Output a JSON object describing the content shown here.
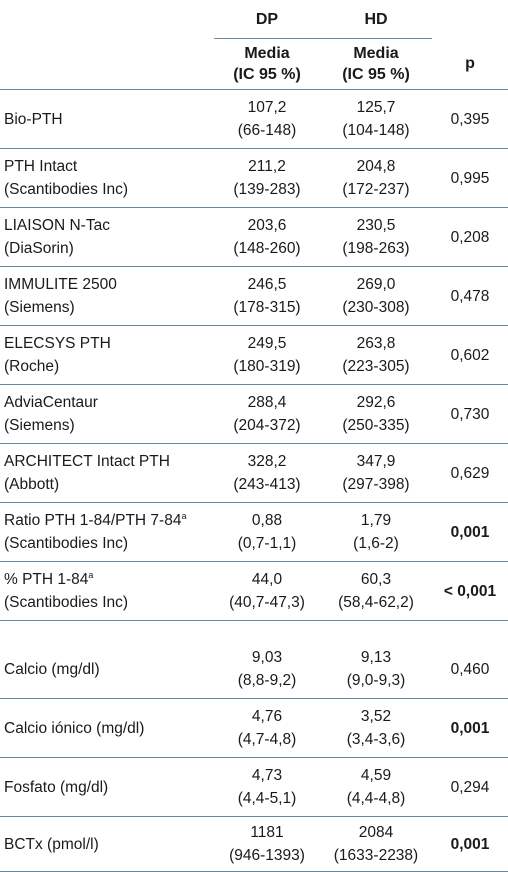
{
  "header": {
    "groups": [
      "DP",
      "HD"
    ],
    "stat_label": "Media",
    "ci_label": "(IC 95 %)",
    "p_label": "p"
  },
  "pth_rows": [
    {
      "name": "Bio-PTH",
      "sub": "",
      "sup": "",
      "dp_mean": "107,2",
      "dp_ci": "(66-148)",
      "hd_mean": "125,7",
      "hd_ci": "(104-148)",
      "p": "0,395",
      "sig": false
    },
    {
      "name": "PTH Intact",
      "sub": "(Scantibodies Inc)",
      "sup": "",
      "dp_mean": "211,2",
      "dp_ci": "(139-283)",
      "hd_mean": "204,8",
      "hd_ci": "(172-237)",
      "p": "0,995",
      "sig": false
    },
    {
      "name": "LIAISON N-Tac",
      "sub": "(DiaSorin)",
      "sup": "",
      "dp_mean": "203,6",
      "dp_ci": "(148-260)",
      "hd_mean": "230,5",
      "hd_ci": "(198-263)",
      "p": "0,208",
      "sig": false
    },
    {
      "name": "IMMULITE 2500",
      "sub": "(Siemens)",
      "sup": "",
      "dp_mean": "246,5",
      "dp_ci": "(178-315)",
      "hd_mean": "269,0",
      "hd_ci": "(230-308)",
      "p": "0,478",
      "sig": false
    },
    {
      "name": "ELECSYS PTH",
      "sub": "(Roche)",
      "sup": "",
      "dp_mean": "249,5",
      "dp_ci": "(180-319)",
      "hd_mean": "263,8",
      "hd_ci": "(223-305)",
      "p": "0,602",
      "sig": false
    },
    {
      "name": "AdviaCentaur",
      "sub": "(Siemens)",
      "sup": "",
      "dp_mean": "288,4",
      "dp_ci": "(204-372)",
      "hd_mean": "292,6",
      "hd_ci": "(250-335)",
      "p": "0,730",
      "sig": false
    },
    {
      "name": "ARCHITECT Intact PTH",
      "sub": "(Abbott)",
      "sup": "",
      "dp_mean": "328,2",
      "dp_ci": "(243-413)",
      "hd_mean": "347,9",
      "hd_ci": "(297-398)",
      "p": "0,629",
      "sig": false
    },
    {
      "name": "Ratio PTH 1-84/PTH 7-84",
      "sub": "(Scantibodies Inc)",
      "sup": "a",
      "dp_mean": "0,88",
      "dp_ci": "(0,7-1,1)",
      "hd_mean": "1,79",
      "hd_ci": "(1,6-2)",
      "p": "0,001",
      "sig": true
    },
    {
      "name": "% PTH 1-84",
      "sub": "(Scantibodies Inc)",
      "sup": "a",
      "dp_mean": "44,0",
      "dp_ci": "(40,7-47,3)",
      "hd_mean": "60,3",
      "hd_ci": "(58,4-62,2)",
      "p": "< 0,001",
      "sig": true
    }
  ],
  "lab_rows": [
    {
      "name": "Calcio (mg/dl)",
      "dp_mean": "9,03",
      "dp_ci": "(8,8-9,2)",
      "hd_mean": "9,13",
      "hd_ci": "(9,0-9,3)",
      "p": "0,460",
      "sig": false
    },
    {
      "name": "Calcio iónico (mg/dl)",
      "dp_mean": "4,76",
      "dp_ci": "(4,7-4,8)",
      "hd_mean": "3,52",
      "hd_ci": "(3,4-3,6)",
      "p": "0,001",
      "sig": true
    },
    {
      "name": "Fosfato (mg/dl)",
      "dp_mean": "4,73",
      "dp_ci": "(4,4-5,1)",
      "hd_mean": "4,59",
      "hd_ci": "(4,4-4,8)",
      "p": "0,294",
      "sig": false
    },
    {
      "name": "BCTx (pmol/l)",
      "dp_mean": "1181",
      "dp_ci": "(946-1393)",
      "hd_mean": "2084",
      "hd_ci": "(1633-2238)",
      "p": "0,001",
      "sig": true
    }
  ]
}
